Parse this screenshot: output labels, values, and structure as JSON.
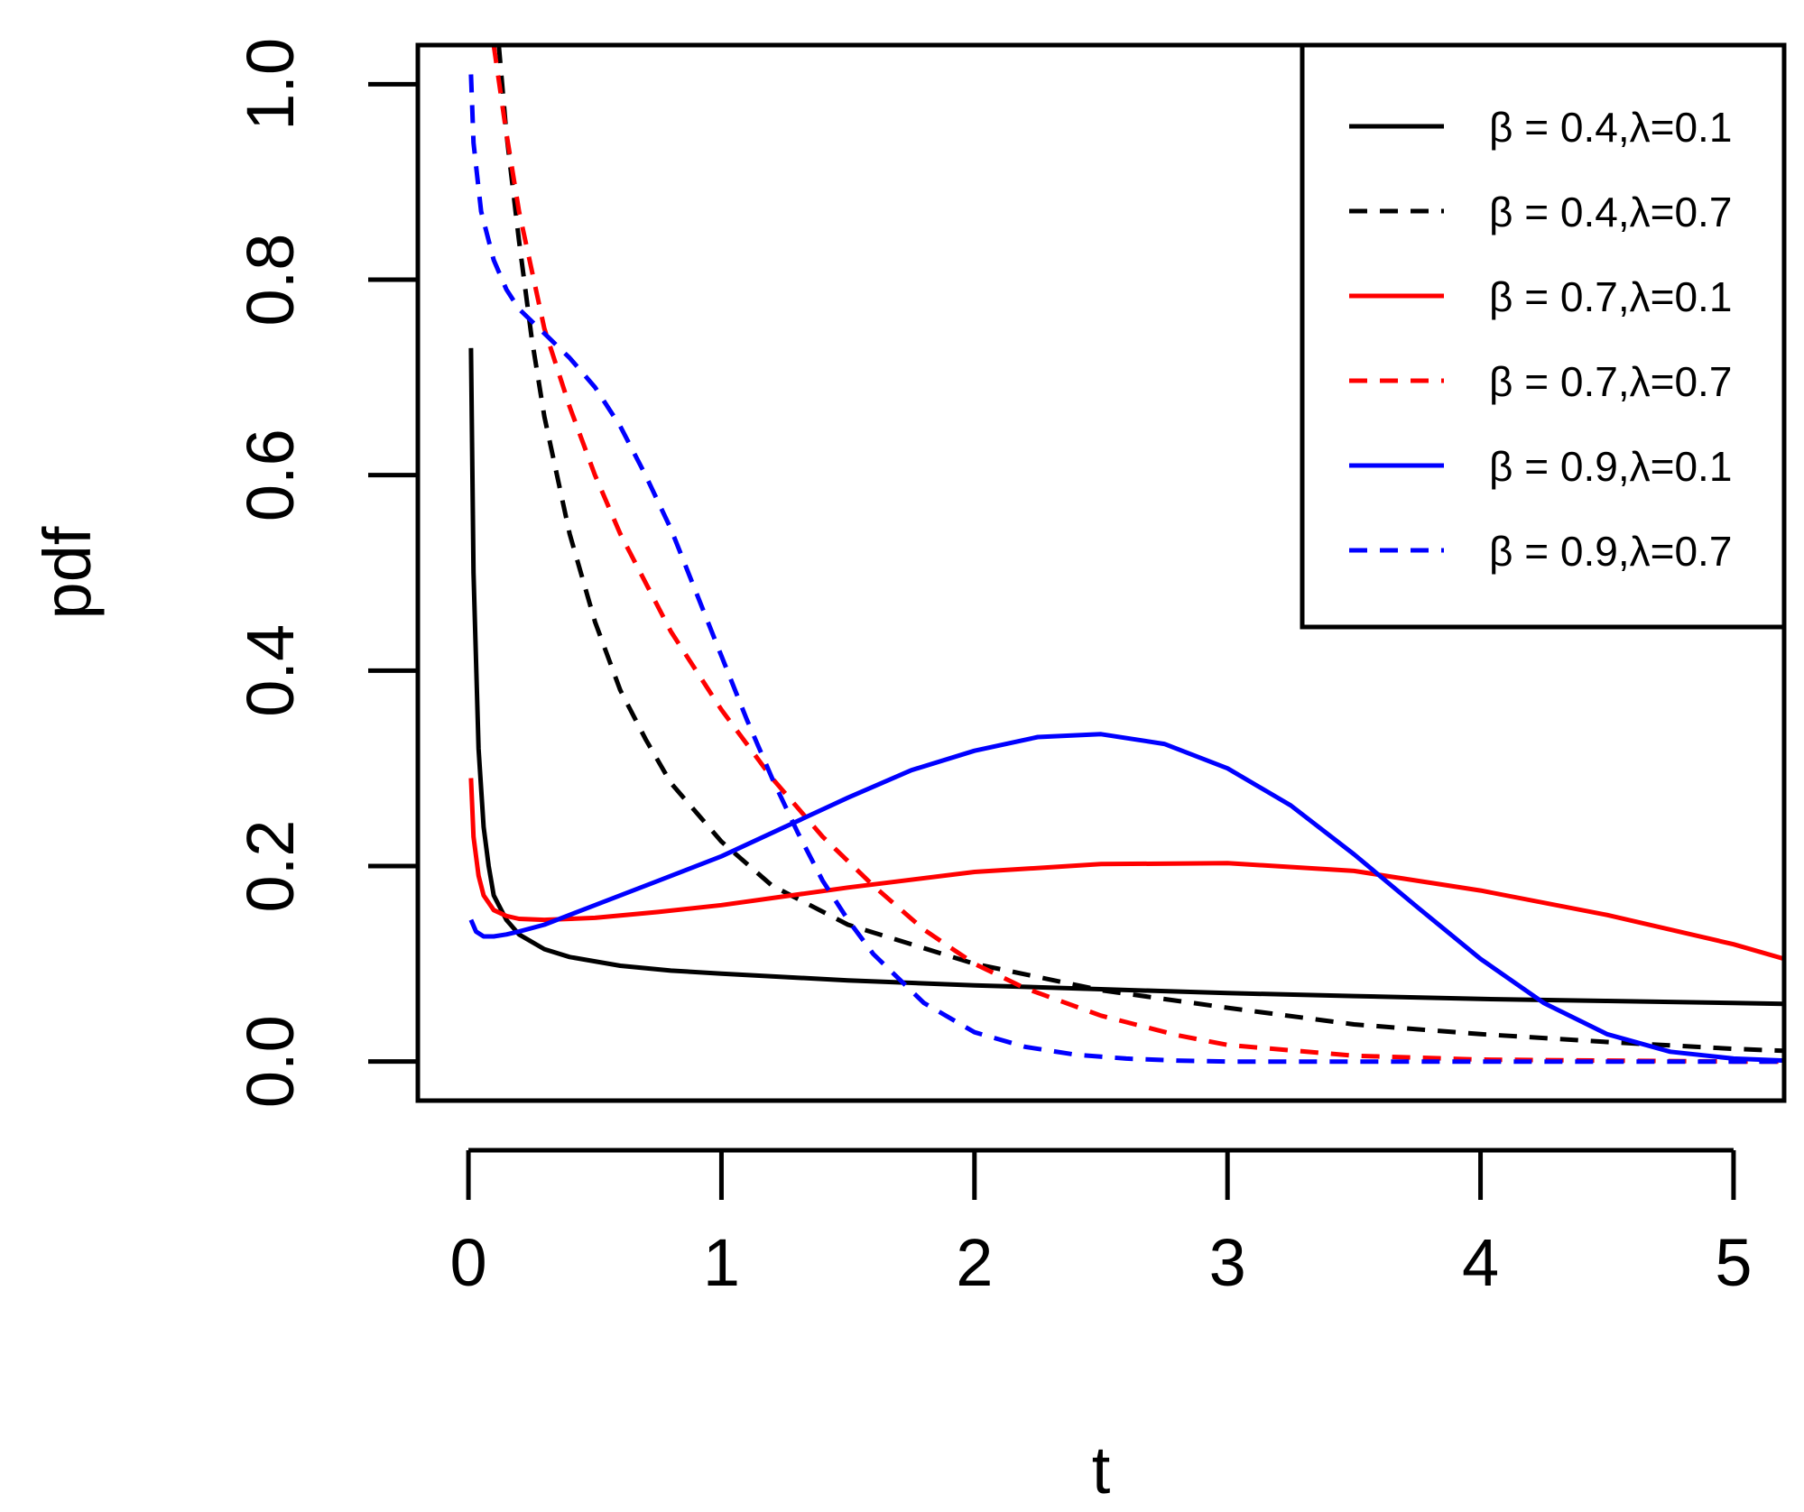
{
  "chart_data": {
    "type": "line",
    "title": "",
    "xlabel": "t",
    "ylabel": "pdf",
    "xlim": [
      -0.2,
      5.2
    ],
    "ylim": [
      -0.04,
      1.04
    ],
    "x_ticks": [
      0,
      1,
      2,
      3,
      4,
      5
    ],
    "y_ticks": [
      0.0,
      0.2,
      0.4,
      0.6,
      0.8,
      1.0
    ],
    "x_tick_labels": [
      "0",
      "1",
      "2",
      "3",
      "4",
      "5"
    ],
    "y_tick_labels": [
      "0.0",
      "0.2",
      "0.4",
      "0.6",
      "0.8",
      "1.0"
    ],
    "grid": false,
    "legend_position": "top-right",
    "series": [
      {
        "name": "β = 0.4,λ=0.1",
        "color": "#000000",
        "dash": "solid",
        "x": [
          0.01,
          0.02,
          0.04,
          0.06,
          0.08,
          0.1,
          0.15,
          0.2,
          0.3,
          0.4,
          0.6,
          0.8,
          1.0,
          1.5,
          2.0,
          2.5,
          3.0,
          3.5,
          4.0,
          4.5,
          5.0,
          5.2
        ],
        "y": [
          0.73,
          0.5,
          0.32,
          0.24,
          0.2,
          0.17,
          0.145,
          0.13,
          0.115,
          0.107,
          0.098,
          0.093,
          0.09,
          0.083,
          0.078,
          0.074,
          0.07,
          0.067,
          0.064,
          0.062,
          0.06,
          0.059
        ]
      },
      {
        "name": "β = 0.4,λ=0.7",
        "color": "#000000",
        "dash": "dashed",
        "x": [
          0.12,
          0.15,
          0.2,
          0.25,
          0.3,
          0.4,
          0.5,
          0.6,
          0.7,
          0.8,
          1.0,
          1.2,
          1.5,
          2.0,
          2.5,
          3.0,
          3.5,
          4.0,
          4.5,
          5.0,
          5.2
        ],
        "y": [
          1.04,
          0.95,
          0.84,
          0.74,
          0.66,
          0.54,
          0.45,
          0.38,
          0.33,
          0.285,
          0.225,
          0.18,
          0.14,
          0.1,
          0.073,
          0.055,
          0.038,
          0.028,
          0.02,
          0.013,
          0.011
        ]
      },
      {
        "name": "β = 0.7,λ=0.1",
        "color": "#ff0000",
        "dash": "solid",
        "x": [
          0.01,
          0.02,
          0.04,
          0.06,
          0.1,
          0.15,
          0.2,
          0.3,
          0.5,
          0.75,
          1.0,
          1.5,
          2.0,
          2.5,
          3.0,
          3.5,
          4.0,
          4.5,
          5.0,
          5.2
        ],
        "y": [
          0.29,
          0.23,
          0.19,
          0.17,
          0.155,
          0.149,
          0.146,
          0.145,
          0.147,
          0.153,
          0.16,
          0.178,
          0.194,
          0.202,
          0.203,
          0.195,
          0.175,
          0.15,
          0.12,
          0.105
        ]
      },
      {
        "name": "β = 0.7,λ=0.7",
        "color": "#ff0000",
        "dash": "dashed",
        "x": [
          0.1,
          0.15,
          0.2,
          0.3,
          0.4,
          0.5,
          0.6,
          0.8,
          1.0,
          1.2,
          1.4,
          1.6,
          1.8,
          2.0,
          2.2,
          2.5,
          2.8,
          3.0,
          3.5,
          4.0,
          4.5,
          5.0,
          5.2
        ],
        "y": [
          1.04,
          0.95,
          0.87,
          0.75,
          0.67,
          0.6,
          0.54,
          0.44,
          0.36,
          0.29,
          0.23,
          0.18,
          0.135,
          0.1,
          0.075,
          0.047,
          0.027,
          0.017,
          0.006,
          0.002,
          0.001,
          0.0,
          0.0
        ]
      },
      {
        "name": "β = 0.9,λ=0.1",
        "color": "#0000ff",
        "dash": "solid",
        "x": [
          0.01,
          0.03,
          0.06,
          0.1,
          0.15,
          0.2,
          0.3,
          0.5,
          0.75,
          1.0,
          1.25,
          1.5,
          1.75,
          2.0,
          2.25,
          2.5,
          2.75,
          3.0,
          3.25,
          3.5,
          3.75,
          4.0,
          4.25,
          4.5,
          4.75,
          5.0,
          5.2
        ],
        "y": [
          0.145,
          0.133,
          0.128,
          0.128,
          0.13,
          0.133,
          0.14,
          0.16,
          0.185,
          0.21,
          0.24,
          0.27,
          0.298,
          0.318,
          0.332,
          0.335,
          0.325,
          0.3,
          0.262,
          0.212,
          0.158,
          0.105,
          0.06,
          0.028,
          0.01,
          0.003,
          0.001
        ]
      },
      {
        "name": "β = 0.9,λ=0.7",
        "color": "#0000ff",
        "dash": "dashed",
        "x": [
          0.01,
          0.02,
          0.05,
          0.1,
          0.15,
          0.2,
          0.3,
          0.4,
          0.5,
          0.6,
          0.7,
          0.8,
          0.9,
          1.0,
          1.1,
          1.2,
          1.3,
          1.4,
          1.5,
          1.6,
          1.8,
          2.0,
          2.2,
          2.4,
          2.6,
          2.8,
          3.0,
          3.5,
          4.0,
          5.0,
          5.2
        ],
        "y": [
          1.01,
          0.94,
          0.87,
          0.82,
          0.79,
          0.77,
          0.745,
          0.72,
          0.69,
          0.65,
          0.6,
          0.545,
          0.48,
          0.415,
          0.35,
          0.29,
          0.235,
          0.185,
          0.145,
          0.11,
          0.06,
          0.03,
          0.015,
          0.007,
          0.003,
          0.001,
          0.0,
          0.0,
          0.0,
          0.0,
          0.0
        ]
      }
    ]
  }
}
